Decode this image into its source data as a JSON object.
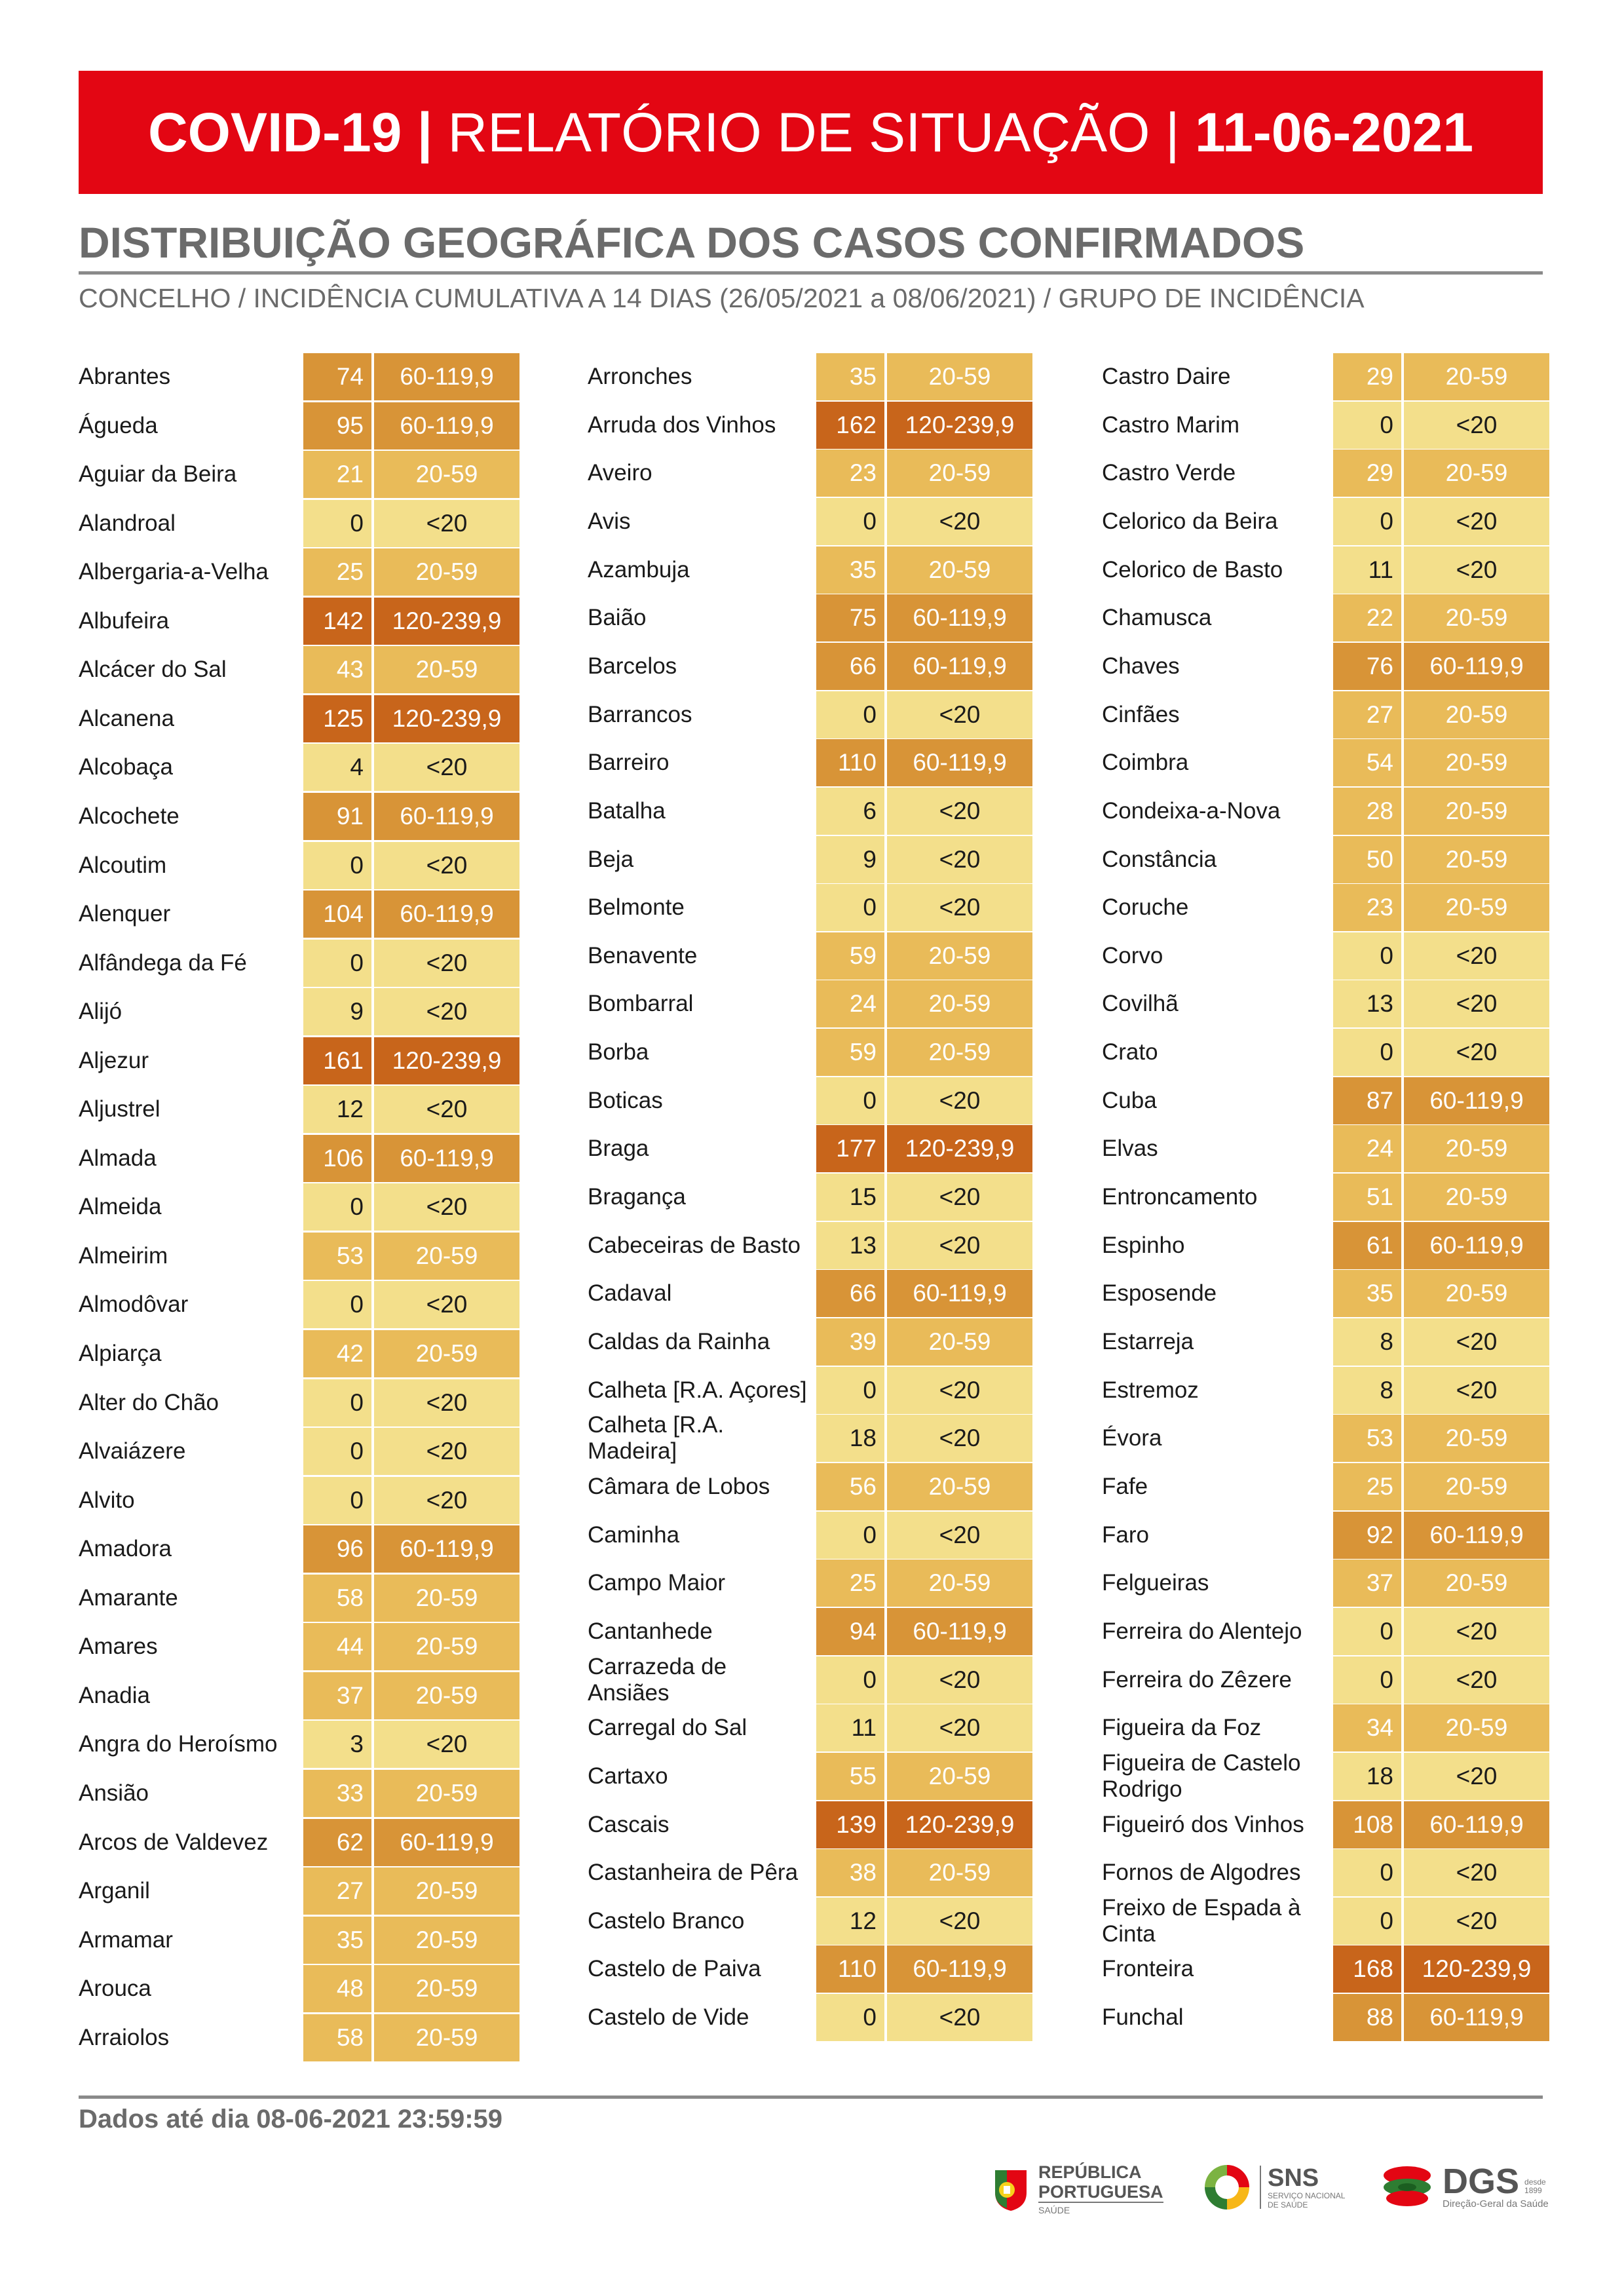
{
  "header": {
    "prefix": "COVID-19 |",
    "middle": " RELATÓRIO DE SITUAÇÃO | ",
    "date": "11-06-2021"
  },
  "section_title": "DISTRIBUIÇÃO GEOGRÁFICA DOS CASOS CONFIRMADOS",
  "section_subtitle": "CONCELHO / INCIDÊNCIA CUMULATIVA A 14 DIAS (26/05/2021 a 08/06/2021) / GRUPO DE INCIDÊNCIA",
  "colors": {
    "lt20": "#f3df8b",
    "g20_59": "#e9bb59",
    "g60_119": "#d89437",
    "g120_239": "#c8651b"
  },
  "columns": [
    [
      {
        "name": "Abrantes",
        "value": "74",
        "group": "60-119,9"
      },
      {
        "name": "Águeda",
        "value": "95",
        "group": "60-119,9"
      },
      {
        "name": "Aguiar da Beira",
        "value": "21",
        "group": "20-59"
      },
      {
        "name": "Alandroal",
        "value": "0",
        "group": "<20"
      },
      {
        "name": "Albergaria-a-Velha",
        "value": "25",
        "group": "20-59"
      },
      {
        "name": "Albufeira",
        "value": "142",
        "group": "120-239,9"
      },
      {
        "name": "Alcácer do Sal",
        "value": "43",
        "group": "20-59"
      },
      {
        "name": "Alcanena",
        "value": "125",
        "group": "120-239,9"
      },
      {
        "name": "Alcobaça",
        "value": "4",
        "group": "<20"
      },
      {
        "name": "Alcochete",
        "value": "91",
        "group": "60-119,9"
      },
      {
        "name": "Alcoutim",
        "value": "0",
        "group": "<20"
      },
      {
        "name": "Alenquer",
        "value": "104",
        "group": "60-119,9"
      },
      {
        "name": "Alfândega da Fé",
        "value": "0",
        "group": "<20"
      },
      {
        "name": "Alijó",
        "value": "9",
        "group": "<20"
      },
      {
        "name": "Aljezur",
        "value": "161",
        "group": "120-239,9"
      },
      {
        "name": "Aljustrel",
        "value": "12",
        "group": "<20"
      },
      {
        "name": "Almada",
        "value": "106",
        "group": "60-119,9"
      },
      {
        "name": "Almeida",
        "value": "0",
        "group": "<20"
      },
      {
        "name": "Almeirim",
        "value": "53",
        "group": "20-59"
      },
      {
        "name": "Almodôvar",
        "value": "0",
        "group": "<20"
      },
      {
        "name": "Alpiarça",
        "value": "42",
        "group": "20-59"
      },
      {
        "name": "Alter do Chão",
        "value": "0",
        "group": "<20"
      },
      {
        "name": "Alvaiázere",
        "value": "0",
        "group": "<20"
      },
      {
        "name": "Alvito",
        "value": "0",
        "group": "<20"
      },
      {
        "name": "Amadora",
        "value": "96",
        "group": "60-119,9"
      },
      {
        "name": "Amarante",
        "value": "58",
        "group": "20-59"
      },
      {
        "name": "Amares",
        "value": "44",
        "group": "20-59"
      },
      {
        "name": "Anadia",
        "value": "37",
        "group": "20-59"
      },
      {
        "name": "Angra do Heroísmo",
        "value": "3",
        "group": "<20"
      },
      {
        "name": "Ansião",
        "value": "33",
        "group": "20-59"
      },
      {
        "name": "Arcos de Valdevez",
        "value": "62",
        "group": "60-119,9"
      },
      {
        "name": "Arganil",
        "value": "27",
        "group": "20-59"
      },
      {
        "name": "Armamar",
        "value": "35",
        "group": "20-59"
      },
      {
        "name": "Arouca",
        "value": "48",
        "group": "20-59"
      },
      {
        "name": "Arraiolos",
        "value": "58",
        "group": "20-59"
      }
    ],
    [
      {
        "name": "Arronches",
        "value": "35",
        "group": "20-59"
      },
      {
        "name": "Arruda dos Vinhos",
        "value": "162",
        "group": "120-239,9"
      },
      {
        "name": "Aveiro",
        "value": "23",
        "group": "20-59"
      },
      {
        "name": "Avis",
        "value": "0",
        "group": "<20"
      },
      {
        "name": "Azambuja",
        "value": "35",
        "group": "20-59"
      },
      {
        "name": "Baião",
        "value": "75",
        "group": "60-119,9"
      },
      {
        "name": "Barcelos",
        "value": "66",
        "group": "60-119,9"
      },
      {
        "name": "Barrancos",
        "value": "0",
        "group": "<20"
      },
      {
        "name": "Barreiro",
        "value": "110",
        "group": "60-119,9"
      },
      {
        "name": "Batalha",
        "value": "6",
        "group": "<20"
      },
      {
        "name": "Beja",
        "value": "9",
        "group": "<20"
      },
      {
        "name": "Belmonte",
        "value": "0",
        "group": "<20"
      },
      {
        "name": "Benavente",
        "value": "59",
        "group": "20-59"
      },
      {
        "name": "Bombarral",
        "value": "24",
        "group": "20-59"
      },
      {
        "name": "Borba",
        "value": "59",
        "group": "20-59"
      },
      {
        "name": "Boticas",
        "value": "0",
        "group": "<20"
      },
      {
        "name": "Braga",
        "value": "177",
        "group": "120-239,9"
      },
      {
        "name": "Bragança",
        "value": "15",
        "group": "<20"
      },
      {
        "name": "Cabeceiras de Basto",
        "value": "13",
        "group": "<20"
      },
      {
        "name": "Cadaval",
        "value": "66",
        "group": "60-119,9"
      },
      {
        "name": "Caldas da Rainha",
        "value": "39",
        "group": "20-59"
      },
      {
        "name": "Calheta [R.A. Açores]",
        "value": "0",
        "group": "<20"
      },
      {
        "name": "Calheta [R.A. Madeira]",
        "value": "18",
        "group": "<20"
      },
      {
        "name": "Câmara de Lobos",
        "value": "56",
        "group": "20-59"
      },
      {
        "name": "Caminha",
        "value": "0",
        "group": "<20"
      },
      {
        "name": "Campo Maior",
        "value": "25",
        "group": "20-59"
      },
      {
        "name": "Cantanhede",
        "value": "94",
        "group": "60-119,9"
      },
      {
        "name": "Carrazeda de Ansiães",
        "value": "0",
        "group": "<20"
      },
      {
        "name": "Carregal do Sal",
        "value": "11",
        "group": "<20"
      },
      {
        "name": "Cartaxo",
        "value": "55",
        "group": "20-59"
      },
      {
        "name": "Cascais",
        "value": "139",
        "group": "120-239,9"
      },
      {
        "name": "Castanheira de Pêra",
        "value": "38",
        "group": "20-59"
      },
      {
        "name": "Castelo Branco",
        "value": "12",
        "group": "<20"
      },
      {
        "name": "Castelo de Paiva",
        "value": "110",
        "group": "60-119,9"
      },
      {
        "name": "Castelo de Vide",
        "value": "0",
        "group": "<20"
      }
    ],
    [
      {
        "name": "Castro Daire",
        "value": "29",
        "group": "20-59"
      },
      {
        "name": "Castro Marim",
        "value": "0",
        "group": "<20"
      },
      {
        "name": "Castro Verde",
        "value": "29",
        "group": "20-59"
      },
      {
        "name": "Celorico da Beira",
        "value": "0",
        "group": "<20"
      },
      {
        "name": "Celorico de Basto",
        "value": "11",
        "group": "<20"
      },
      {
        "name": "Chamusca",
        "value": "22",
        "group": "20-59"
      },
      {
        "name": "Chaves",
        "value": "76",
        "group": "60-119,9"
      },
      {
        "name": "Cinfães",
        "value": "27",
        "group": "20-59"
      },
      {
        "name": "Coimbra",
        "value": "54",
        "group": "20-59"
      },
      {
        "name": "Condeixa-a-Nova",
        "value": "28",
        "group": "20-59"
      },
      {
        "name": "Constância",
        "value": "50",
        "group": "20-59"
      },
      {
        "name": "Coruche",
        "value": "23",
        "group": "20-59"
      },
      {
        "name": "Corvo",
        "value": "0",
        "group": "<20"
      },
      {
        "name": "Covilhã",
        "value": "13",
        "group": "<20"
      },
      {
        "name": "Crato",
        "value": "0",
        "group": "<20"
      },
      {
        "name": "Cuba",
        "value": "87",
        "group": "60-119,9"
      },
      {
        "name": "Elvas",
        "value": "24",
        "group": "20-59"
      },
      {
        "name": "Entroncamento",
        "value": "51",
        "group": "20-59"
      },
      {
        "name": "Espinho",
        "value": "61",
        "group": "60-119,9"
      },
      {
        "name": "Esposende",
        "value": "35",
        "group": "20-59"
      },
      {
        "name": "Estarreja",
        "value": "8",
        "group": "<20"
      },
      {
        "name": "Estremoz",
        "value": "8",
        "group": "<20"
      },
      {
        "name": "Évora",
        "value": "53",
        "group": "20-59"
      },
      {
        "name": "Fafe",
        "value": "25",
        "group": "20-59"
      },
      {
        "name": "Faro",
        "value": "92",
        "group": "60-119,9"
      },
      {
        "name": "Felgueiras",
        "value": "37",
        "group": "20-59"
      },
      {
        "name": "Ferreira do Alentejo",
        "value": "0",
        "group": "<20"
      },
      {
        "name": "Ferreira do Zêzere",
        "value": "0",
        "group": "<20"
      },
      {
        "name": "Figueira da Foz",
        "value": "34",
        "group": "20-59"
      },
      {
        "name": "Figueira de Castelo Rodrigo",
        "value": "18",
        "group": "<20"
      },
      {
        "name": "Figueiró dos Vinhos",
        "value": "108",
        "group": "60-119,9"
      },
      {
        "name": "Fornos de Algodres",
        "value": "0",
        "group": "<20"
      },
      {
        "name": "Freixo de Espada à Cinta",
        "value": "0",
        "group": "<20"
      },
      {
        "name": "Fronteira",
        "value": "168",
        "group": "120-239,9"
      },
      {
        "name": "Funchal",
        "value": "88",
        "group": "60-119,9"
      }
    ]
  ],
  "footer": {
    "note": "Dados até dia 08-06-2021 23:59:59"
  },
  "logos": {
    "republica": {
      "line1": "REPÚBLICA",
      "line2": "PORTUGUESA",
      "line3": "SAÚDE",
      "icon": "flag-emblem-icon"
    },
    "sns": {
      "title": "SNS",
      "line1": "SERVIÇO NACIONAL",
      "line2": "DE SAÚDE",
      "icon": "sns-circle-icon"
    },
    "dgs": {
      "title": "DGS",
      "since1": "desde",
      "since2": "1899",
      "subtitle": "Direção-Geral da Saúde",
      "icon": "dgs-stack-icon"
    }
  }
}
